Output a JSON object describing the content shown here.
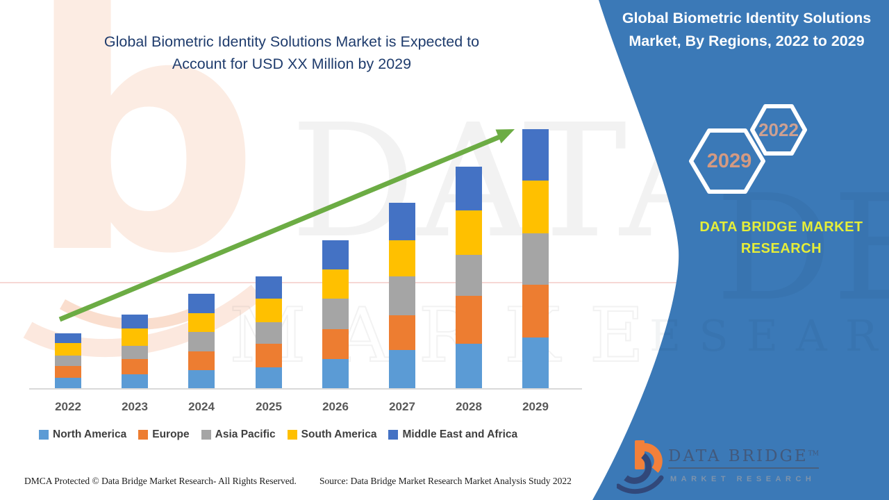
{
  "main_title": {
    "line1": "Global Biometric Identity Solutions Market is Expected to",
    "line2": "Account for USD XX Million by 2029",
    "color": "#1f3c6d"
  },
  "panel": {
    "bg_color": "#3b79b7",
    "title_line1": "Global Biometric Identity Solutions",
    "title_line2": "Market, By Regions, 2022 to 2029",
    "hexagon_large_label": "2029",
    "hexagon_small_label": "2022",
    "hex_label_color": "#d49a82",
    "brand_text_line1": "DATA BRIDGE MARKET",
    "brand_text_line2": "RESEARCH",
    "brand_text_color": "#e5ee39",
    "logo": {
      "name": "DATA BRIDGE",
      "tm": "TM",
      "subtitle": "MARKET RESEARCH"
    }
  },
  "watermark": {
    "letter": "b",
    "line1": "DATA BRIDGE",
    "line2": "MARKET RESEARCH"
  },
  "footer": {
    "left": "DMCA Protected © Data Bridge Market Research- All Rights Reserved.",
    "right": "Source: Data Bridge Market Research Market Analysis Study 2022"
  },
  "chart_data": {
    "type": "bar",
    "stacked": true,
    "title": "Global Biometric Identity Solutions Market is Expected to Account for USD XX Million by 2029",
    "xlabel": "",
    "ylabel": "",
    "units": "relative index; actual values shown as USD XX Million (not disclosed)",
    "grid": false,
    "legend_position": "bottom",
    "trend_arrow": true,
    "trend_arrow_color": "#6cac44",
    "categories": [
      "2022",
      "2023",
      "2024",
      "2025",
      "2026",
      "2027",
      "2028",
      "2029"
    ],
    "series": [
      {
        "name": "North America",
        "color": "#5B9BD5",
        "values": [
          16,
          21,
          27,
          31,
          43,
          56,
          65,
          74
        ]
      },
      {
        "name": "Europe",
        "color": "#ED7D31",
        "values": [
          17,
          22,
          27,
          34,
          43,
          50,
          69,
          76
        ]
      },
      {
        "name": "Asia Pacific",
        "color": "#A5A5A5",
        "values": [
          15,
          19,
          28,
          31,
          44,
          56,
          59,
          74
        ]
      },
      {
        "name": "South America",
        "color": "#FFC000",
        "values": [
          18,
          25,
          27,
          34,
          42,
          52,
          64,
          76
        ]
      },
      {
        "name": "Middle East and Africa",
        "color": "#4472C4",
        "values": [
          14,
          20,
          28,
          32,
          42,
          54,
          63,
          74
        ]
      }
    ],
    "totals": [
      80,
      107,
      137,
      162,
      214,
      268,
      320,
      374
    ]
  }
}
